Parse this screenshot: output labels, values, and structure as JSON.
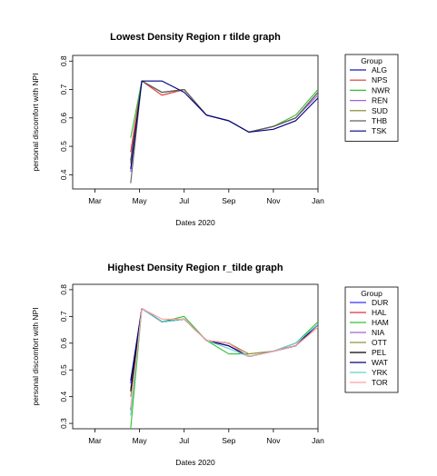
{
  "chart_data": [
    {
      "type": "line",
      "title": "Lowest Density Region r tilde graph",
      "xlabel": "Dates 2020",
      "ylabel": "personal discomfort with NPI",
      "x_tick_labels": [
        "Mar",
        "May",
        "Jul",
        "Sep",
        "Nov",
        "Jan"
      ],
      "x_tick_values": [
        3,
        5,
        7,
        9,
        11,
        13
      ],
      "xlim": [
        2.0,
        13.0
      ],
      "y_ticks": [
        0.4,
        0.5,
        0.6,
        0.7,
        0.8
      ],
      "y_tick_labels": [
        "0.4",
        "0.5",
        "0.6",
        "0.7",
        "0.8"
      ],
      "ylim": [
        0.35,
        0.82
      ],
      "grid": false,
      "legend_title": "Group",
      "legend_position": "right",
      "x": [
        4.6,
        5.1,
        6.0,
        7.0,
        8.0,
        9.0,
        9.9,
        11.0,
        12.0,
        13.0
      ],
      "series": [
        {
          "name": "ALG",
          "color": "#1a1ab0",
          "values": [
            0.45,
            0.73,
            0.69,
            0.7,
            0.61,
            0.59,
            0.55,
            0.57,
            0.6,
            0.69
          ]
        },
        {
          "name": "NPS",
          "color": "#e03030",
          "values": [
            0.48,
            0.73,
            0.68,
            0.7,
            0.61,
            0.59,
            0.55,
            0.57,
            0.6,
            0.69
          ]
        },
        {
          "name": "NWR",
          "color": "#30c030",
          "values": [
            0.53,
            0.73,
            0.69,
            0.7,
            0.61,
            0.59,
            0.55,
            0.57,
            0.61,
            0.7
          ]
        },
        {
          "name": "REN",
          "color": "#a060e0",
          "values": [
            0.41,
            0.73,
            0.69,
            0.7,
            0.61,
            0.59,
            0.55,
            0.57,
            0.6,
            0.68
          ]
        },
        {
          "name": "SUD",
          "color": "#808020",
          "values": [
            0.44,
            0.73,
            0.69,
            0.7,
            0.61,
            0.59,
            0.55,
            0.57,
            0.6,
            0.69
          ]
        },
        {
          "name": "THB",
          "color": "#606060",
          "values": [
            0.37,
            0.73,
            0.69,
            0.7,
            0.61,
            0.59,
            0.55,
            0.57,
            0.6,
            0.69
          ]
        },
        {
          "name": "TSK",
          "color": "#000080",
          "values": [
            0.42,
            0.73,
            0.73,
            0.69,
            0.61,
            0.59,
            0.55,
            0.56,
            0.59,
            0.67
          ]
        }
      ]
    },
    {
      "type": "line",
      "title": "Highest Density Region r_tilde graph",
      "xlabel": "Dates 2020",
      "ylabel": "personal discomfort with NPI",
      "x_tick_labels": [
        "Mar",
        "May",
        "Jul",
        "Sep",
        "Nov",
        "Jan"
      ],
      "x_tick_values": [
        3,
        5,
        7,
        9,
        11,
        13
      ],
      "xlim": [
        2.0,
        13.0
      ],
      "y_ticks": [
        0.3,
        0.4,
        0.5,
        0.6,
        0.7,
        0.8
      ],
      "y_tick_labels": [
        "0.3",
        "0.4",
        "0.5",
        "0.6",
        "0.7",
        "0.8"
      ],
      "ylim": [
        0.28,
        0.82
      ],
      "grid": false,
      "legend_title": "Group",
      "legend_position": "right",
      "x": [
        4.6,
        5.1,
        6.0,
        7.0,
        8.0,
        9.0,
        9.9,
        11.0,
        12.0,
        13.0
      ],
      "series": [
        {
          "name": "DUR",
          "color": "#3030ff",
          "values": [
            0.45,
            0.73,
            0.68,
            0.69,
            0.61,
            0.59,
            0.55,
            0.57,
            0.59,
            0.67
          ]
        },
        {
          "name": "HAL",
          "color": "#e03030",
          "values": [
            0.35,
            0.73,
            0.68,
            0.69,
            0.61,
            0.59,
            0.55,
            0.57,
            0.59,
            0.66
          ]
        },
        {
          "name": "HAM",
          "color": "#30c030",
          "values": [
            0.28,
            0.73,
            0.68,
            0.7,
            0.61,
            0.56,
            0.56,
            0.57,
            0.6,
            0.68
          ]
        },
        {
          "name": "NIA",
          "color": "#a060e0",
          "values": [
            0.43,
            0.73,
            0.68,
            0.69,
            0.61,
            0.6,
            0.55,
            0.57,
            0.6,
            0.67
          ]
        },
        {
          "name": "OTT",
          "color": "#909040",
          "values": [
            0.4,
            0.73,
            0.68,
            0.69,
            0.61,
            0.6,
            0.56,
            0.57,
            0.6,
            0.67
          ]
        },
        {
          "name": "PEL",
          "color": "#000000",
          "values": [
            0.42,
            0.73,
            0.68,
            0.69,
            0.61,
            0.6,
            0.55,
            0.57,
            0.59,
            0.67
          ]
        },
        {
          "name": "WAT",
          "color": "#000080",
          "values": [
            0.46,
            0.73,
            0.68,
            0.69,
            0.61,
            0.59,
            0.55,
            0.57,
            0.59,
            0.67
          ]
        },
        {
          "name": "YRK",
          "color": "#60d0d0",
          "values": [
            0.33,
            0.73,
            0.68,
            0.69,
            0.61,
            0.58,
            0.55,
            0.57,
            0.6,
            0.67
          ]
        },
        {
          "name": "TOR",
          "color": "#ffa0a0",
          "values": [
            0.36,
            0.73,
            0.69,
            0.69,
            0.61,
            0.6,
            0.55,
            0.57,
            0.59,
            0.66
          ]
        }
      ]
    }
  ]
}
